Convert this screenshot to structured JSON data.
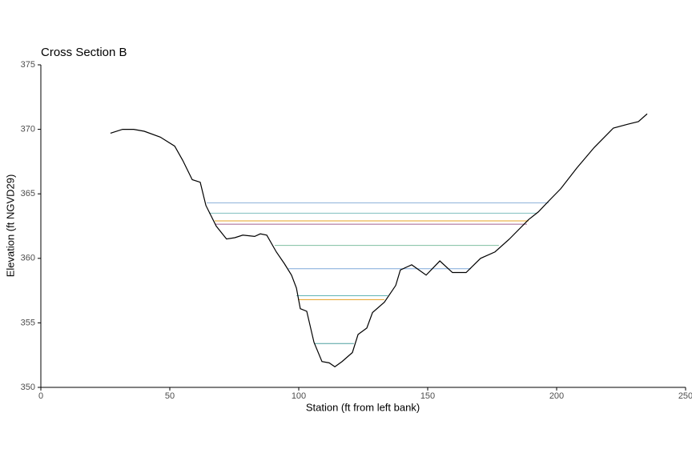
{
  "chart_data": {
    "type": "line",
    "title": "Cross Section B",
    "xlabel": "Station (ft from left bank)",
    "ylabel": "Elevation (ft NGVD29)",
    "xlim": [
      0,
      250
    ],
    "xticks": [
      0,
      50,
      100,
      150,
      200,
      250
    ],
    "ylim": [
      350,
      375
    ],
    "yticks": [
      350,
      355,
      360,
      365,
      370,
      375
    ],
    "x": [
      27.0,
      31.7,
      36.0,
      40.1,
      46.3,
      51.9,
      55.0,
      58.7,
      61.8,
      64.0,
      68.0,
      72.0,
      75.2,
      78.3,
      82.9,
      85.1,
      87.6,
      91.3,
      94.4,
      97.2,
      99.1,
      100.6,
      103.1,
      105.9,
      109.0,
      111.8,
      114.0,
      116.8,
      120.8,
      123.0,
      126.4,
      128.6,
      133.2,
      137.6,
      139.4,
      143.8,
      149.4,
      154.7,
      159.6,
      164.9,
      170.5,
      176.1,
      181.7,
      189.1,
      192.9,
      197.2,
      201.6,
      207.8,
      214.6,
      222.0,
      227.6,
      231.7,
      235.1
    ],
    "series": [
      {
        "color": "#000000",
        "values": [
          369.7,
          370.0,
          370.0,
          369.85,
          369.4,
          368.7,
          367.6,
          366.1,
          365.9,
          364.1,
          362.5,
          361.5,
          361.6,
          361.8,
          361.7,
          361.9,
          361.8,
          360.5,
          359.6,
          358.7,
          357.7,
          356.1,
          355.9,
          353.5,
          352.0,
          351.9,
          351.6,
          352.0,
          352.7,
          354.1,
          354.6,
          355.8,
          356.6,
          357.9,
          359.1,
          359.5,
          358.7,
          359.8,
          358.9,
          358.9,
          360.0,
          360.5,
          361.5,
          363.0,
          363.6,
          364.5,
          365.4,
          367.0,
          368.6,
          370.1,
          370.4,
          370.6,
          371.2
        ]
      }
    ],
    "levels": [
      {
        "color": "#8fb3d9",
        "elevation": 364.3,
        "stations": [
          64.3,
          196.9
        ]
      },
      {
        "color": "#7fbfbf",
        "elevation": 363.5,
        "stations": [
          65.2,
          192.5
        ]
      },
      {
        "color": "#e6a020",
        "elevation": 362.9,
        "stations": [
          67.4,
          189.1
        ]
      },
      {
        "color": "#a0608f",
        "elevation": 362.65,
        "stations": [
          67.7,
          188.5
        ]
      },
      {
        "color": "#7fbfa0",
        "elevation": 361.0,
        "stations": [
          90.7,
          177.6
        ]
      },
      {
        "color": "#7fa8d9",
        "elevation": 359.2,
        "stations": [
          96.0,
          166.8
        ]
      },
      {
        "color": "#5fb3b3",
        "elevation": 357.1,
        "stations": [
          99.1,
          134.5
        ]
      },
      {
        "color": "#e6a020",
        "elevation": 356.8,
        "stations": [
          99.7,
          133.2
        ]
      },
      {
        "color": "#4fa0a0",
        "elevation": 353.4,
        "stations": [
          105.9,
          121.4
        ]
      }
    ]
  }
}
